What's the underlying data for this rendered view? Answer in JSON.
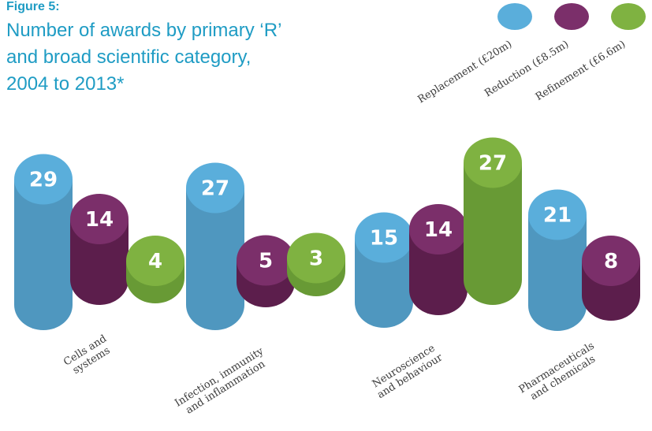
{
  "figure": {
    "label": "Figure 5:",
    "title_lines": [
      "Number of awards by primary ‘R’",
      "and broad scientific category,",
      "2004 to 2013*"
    ]
  },
  "chart_data": {
    "type": "bar",
    "style": "3d-cylinder",
    "categories": [
      [
        "Cells and",
        "systems"
      ],
      [
        "Infection, immunity",
        "and inflammation"
      ],
      [
        "Neuroscience",
        "and behaviour"
      ],
      [
        "Pharmaceuticals",
        "and chemicals"
      ]
    ],
    "series": [
      {
        "name": "Replacement (£20m)",
        "color": "#5aaedb",
        "values": [
          29,
          27,
          15,
          21
        ]
      },
      {
        "name": "Reduction (£8.5m)",
        "color": "#7b2f6a",
        "values": [
          14,
          5,
          14,
          8
        ]
      },
      {
        "name": "Refinement (£6.6m)",
        "color": "#7fb241",
        "values": [
          4,
          3,
          27,
          null
        ]
      }
    ],
    "legend_position": "top-right",
    "grid": false,
    "axes_visible": false
  },
  "colors": {
    "accent": "#1f9cc4",
    "replacement_side": "#4f97bf",
    "reduction_side": "#5c1e4c",
    "refinement_side": "#689a35"
  }
}
